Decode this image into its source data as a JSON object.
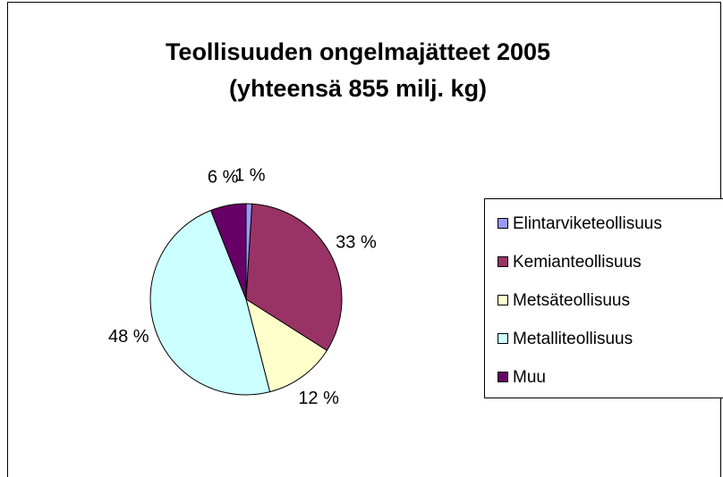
{
  "chart_data": {
    "type": "pie",
    "title": "Teollisuuden ongelmajätteet 2005",
    "subtitle": "(yhteensä 855 milj. kg)",
    "categories": [
      "Elintarviketeollisuus",
      "Kemianteollisuus",
      "Metsäteollisuus",
      "Metalliteollisuus",
      "Muu"
    ],
    "values": [
      1,
      33,
      12,
      48,
      6
    ],
    "value_labels": [
      "1 %",
      "33 %",
      "12 %",
      "48 %",
      "6 %"
    ],
    "colors": [
      "#9999ff",
      "#993366",
      "#ffffcc",
      "#ccffff",
      "#660066"
    ],
    "legend": "right"
  }
}
